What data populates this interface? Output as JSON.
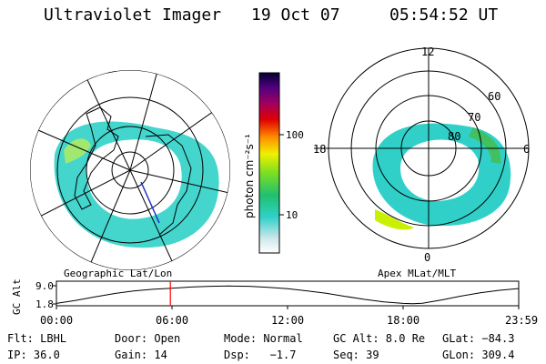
{
  "header": {
    "instrument": "Ultraviolet Imager",
    "date": "19 Oct 07",
    "time": "05:54:52 UT"
  },
  "left_panel": {
    "label": "Geographic Lat/Lon"
  },
  "right_panel": {
    "label": "Apex MLat/MLT",
    "mlt_labels": {
      "top": "12",
      "left": "18",
      "right": "6",
      "bottom": "0"
    },
    "lat_labels": [
      "60",
      "70",
      "80"
    ]
  },
  "colorbar": {
    "unit_label": "photon cm⁻²s⁻¹",
    "ticks": [
      "100",
      "10"
    ]
  },
  "altitude_panel": {
    "ylabel": "GC Alt",
    "ymax": "9.0",
    "ymin": "1.8",
    "xticks": [
      "00:00",
      "06:00",
      "12:00",
      "18:00",
      "23:59"
    ]
  },
  "info": {
    "row1": [
      "Flt: LBHL",
      "Door: Open",
      "Mode: Normal",
      "GC Alt: 8.0 Re",
      "GLat: −84.3"
    ],
    "row2": [
      "IP: 36.0",
      "Gain: 14",
      "Dsp:   −1.7",
      "Seq: 39",
      "GLon: 309.4"
    ]
  },
  "colors": {
    "marker": "#ff0000",
    "aurora_low": "#30d0c8",
    "aurora_high": "#c8f000"
  },
  "chart_data": {
    "type": "line",
    "title": "",
    "xlabel": "",
    "ylabel": "GC Alt",
    "xlim": [
      0,
      24
    ],
    "ylim": [
      1.8,
      9.0
    ],
    "x": [
      0,
      1,
      2,
      3,
      4,
      5,
      6,
      7,
      8,
      9,
      10,
      11,
      12,
      13,
      14,
      15,
      16,
      17,
      18,
      18.5,
      19,
      20,
      21,
      22,
      23,
      23.98
    ],
    "series": [
      {
        "values": [
          2.0,
          3.2,
          4.6,
          5.9,
          6.9,
          7.6,
          8.0,
          8.5,
          8.8,
          8.9,
          8.8,
          8.4,
          7.8,
          7.0,
          6.0,
          4.8,
          3.6,
          2.6,
          2.0,
          1.9,
          2.1,
          3.4,
          4.9,
          6.2,
          7.2,
          7.9
        ]
      }
    ],
    "marker_time": 5.914
  }
}
